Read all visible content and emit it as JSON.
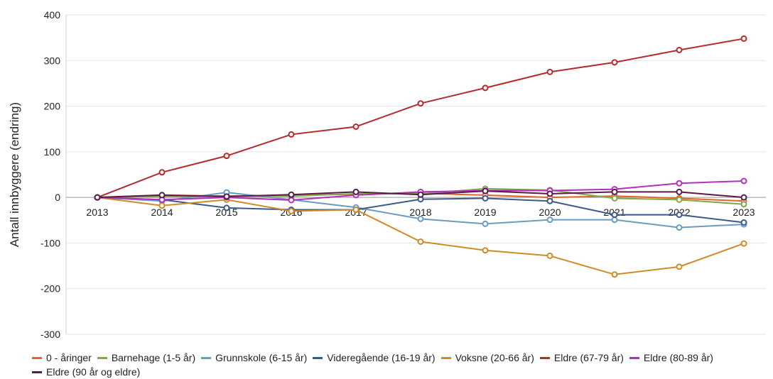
{
  "chart_data": {
    "type": "line",
    "y_label": "Antall innbyggere (endring)",
    "categories": [
      "2013",
      "2014",
      "2015",
      "2016",
      "2017",
      "2018",
      "2019",
      "2020",
      "2021",
      "2022",
      "2023"
    ],
    "series": [
      {
        "name": "0 - åringer",
        "color": "#e8632b",
        "values": [
          0,
          5,
          3,
          5,
          7,
          9,
          5,
          0,
          3,
          -2,
          -8
        ]
      },
      {
        "name": "Barnehage (1-5 år)",
        "color": "#7fa84a",
        "values": [
          0,
          2,
          3,
          3,
          8,
          8,
          19,
          16,
          -2,
          -5,
          -15
        ]
      },
      {
        "name": "Grunnskole (6-15 år)",
        "color": "#6b9bbf",
        "values": [
          0,
          -8,
          11,
          -5,
          -22,
          -47,
          -58,
          -49,
          -49,
          -66,
          -59
        ]
      },
      {
        "name": "Videregående (16-19 år)",
        "color": "#3b5a8c",
        "values": [
          0,
          -5,
          -23,
          -27,
          -27,
          -4,
          -2,
          -8,
          -38,
          -38,
          -55
        ]
      },
      {
        "name": "Voksne (20-66 år)",
        "color": "#d08a28",
        "values": [
          0,
          -18,
          -5,
          -30,
          -27,
          -97,
          -116,
          -128,
          -169,
          -152,
          -101
        ]
      },
      {
        "name": "Eldre (67-79 år)",
        "color": "#b52a2a",
        "values": [
          0,
          55,
          91,
          138,
          155,
          206,
          240,
          275,
          296,
          323,
          348
        ]
      },
      {
        "name": "Eldre (80-89 år)",
        "color": "#b52fbf",
        "values": [
          0,
          -5,
          0,
          -6,
          5,
          12,
          15,
          15,
          18,
          31,
          36
        ]
      },
      {
        "name": "Eldre (90 år og eldre)",
        "color": "#5a1a4a",
        "values": [
          0,
          5,
          2,
          6,
          12,
          6,
          14,
          8,
          12,
          12,
          0
        ]
      }
    ],
    "ylim": [
      -300,
      400
    ],
    "yticks": [
      -300,
      -200,
      -100,
      0,
      100,
      200,
      300,
      400
    ],
    "grid": true
  }
}
